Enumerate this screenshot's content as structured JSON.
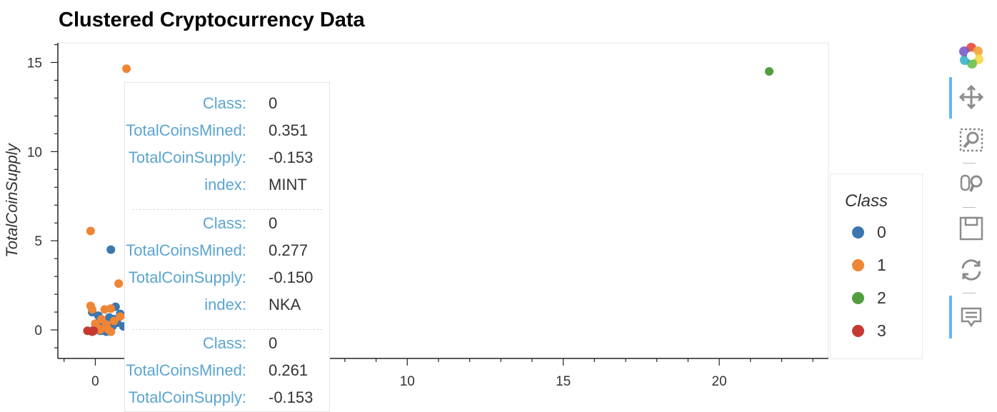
{
  "chart_data": {
    "type": "scatter",
    "title": "Clustered Cryptocurrency Data",
    "xlabel": "",
    "ylabel": "TotalCoinSupply",
    "xlim": [
      -1.2,
      23.5
    ],
    "ylim": [
      -1.6,
      16.1
    ],
    "xticks": [
      0,
      5,
      10,
      15,
      20
    ],
    "yticks": [
      0,
      5,
      10,
      15
    ],
    "legend": {
      "title": "Class",
      "placement": "right"
    },
    "series": [
      {
        "name": "0",
        "color": "#3a76af",
        "points": [
          [
            0.5,
            4.5
          ],
          [
            -0.1,
            1.0
          ],
          [
            0.1,
            0.8
          ],
          [
            0.3,
            0.5
          ],
          [
            0.6,
            0.6
          ],
          [
            0.2,
            0.3
          ],
          [
            0.8,
            0.9
          ],
          [
            0.05,
            0.1
          ],
          [
            0.4,
            0.05
          ],
          [
            0.15,
            -0.05
          ],
          [
            0.25,
            0.15
          ],
          [
            0.55,
            0.2
          ],
          [
            -0.05,
            0.0
          ],
          [
            0.35,
            -0.1
          ],
          [
            0.7,
            0.4
          ],
          [
            0.9,
            0.2
          ],
          [
            0.45,
            0.7
          ],
          [
            0.65,
            1.3
          ],
          [
            1.1,
            1.2
          ],
          [
            1.6,
            1.2
          ],
          [
            0.2,
            -0.05
          ],
          [
            0.5,
            -0.1
          ],
          [
            1.9,
            -0.1
          ],
          [
            0.1,
            0.4
          ]
        ]
      },
      {
        "name": "1",
        "color": "#ef8636",
        "points": [
          [
            1.0,
            14.65
          ],
          [
            -0.15,
            5.55
          ],
          [
            0.75,
            2.6
          ],
          [
            -0.15,
            1.35
          ],
          [
            -0.1,
            1.15
          ],
          [
            0.3,
            1.15
          ],
          [
            0.5,
            1.2
          ],
          [
            0.2,
            0.6
          ],
          [
            0.0,
            0.35
          ],
          [
            0.35,
            0.3
          ],
          [
            0.1,
            0.1
          ],
          [
            0.6,
            0.5
          ],
          [
            0.8,
            0.75
          ],
          [
            0.5,
            -0.1
          ],
          [
            1.3,
            0.1
          ],
          [
            3.0,
            -0.15
          ],
          [
            1.9,
            1.2
          ],
          [
            0.4,
            0.05
          ],
          [
            0.15,
            0.0
          ]
        ]
      },
      {
        "name": "2",
        "color": "#519e3e",
        "points": [
          [
            21.6,
            14.5
          ]
        ]
      },
      {
        "name": "3",
        "color": "#c53932",
        "points": [
          [
            -0.25,
            -0.05
          ],
          [
            -0.1,
            -0.1
          ],
          [
            -0.05,
            -0.05
          ]
        ]
      }
    ]
  },
  "tooltip": {
    "entries": [
      {
        "class_key": "Class:",
        "class_val": "0",
        "mined_key": "TotalCoinsMined:",
        "mined_val": "0.351",
        "supply_key": "TotalCoinSupply:",
        "supply_val": "-0.153",
        "index_key": "index:",
        "index_val": "MINT"
      },
      {
        "class_key": "Class:",
        "class_val": "0",
        "mined_key": "TotalCoinsMined:",
        "mined_val": "0.277",
        "supply_key": "TotalCoinSupply:",
        "supply_val": "-0.150",
        "index_key": "index:",
        "index_val": "NKA"
      },
      {
        "class_key": "Class:",
        "class_val": "0",
        "mined_key": "TotalCoinsMined:",
        "mined_val": "0.261",
        "supply_key": "TotalCoinSupply:",
        "supply_val": "-0.153",
        "index_key": "index:",
        "index_val": ""
      }
    ]
  },
  "toolbar": {
    "tools": [
      "bokeh-logo-icon",
      "pan-icon",
      "box-zoom-icon",
      "wheel-zoom-icon",
      "save-icon",
      "reset-icon",
      "hover-icon"
    ]
  }
}
